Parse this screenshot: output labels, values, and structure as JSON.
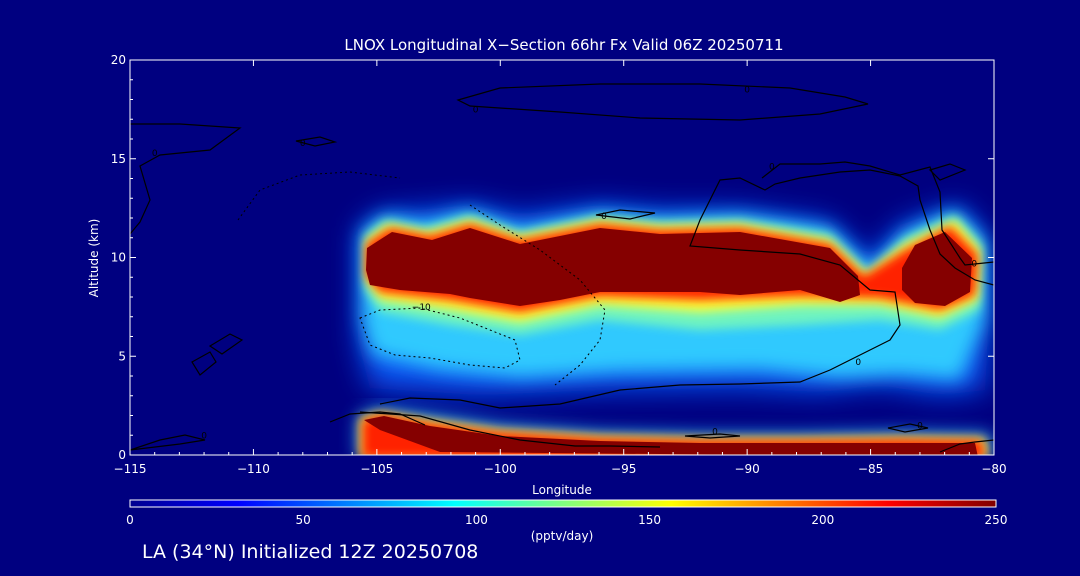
{
  "chart_data": {
    "type": "heatmap",
    "title": "LNOX Longitudinal X−Section 66hr  Fx Valid 06Z 20250711",
    "xlabel": "Longitude",
    "ylabel": "Altitude (km)",
    "xlim": [
      -115,
      -80
    ],
    "ylim": [
      0,
      20
    ],
    "xticks": [
      -115,
      -110,
      -105,
      -100,
      -95,
      -90,
      -85,
      -80
    ],
    "xtick_labels": [
      "−115",
      "−110",
      "−105",
      "−100",
      "−95",
      "−90",
      "−85",
      "−80"
    ],
    "yticks": [
      0,
      5,
      10,
      15,
      20
    ],
    "ytick_labels": [
      "0",
      "5",
      "10",
      "15",
      "20"
    ],
    "grid": false,
    "colorbar": {
      "range": [
        0,
        250
      ],
      "ticks": [
        0,
        50,
        100,
        150,
        200,
        250
      ],
      "tick_labels": [
        "0",
        "50",
        "100",
        "150",
        "200",
        "250"
      ],
      "label": "(pptv/day)",
      "colormap": "jet"
    },
    "regions": [
      {
        "name": "upper-band",
        "lon": [
          -105.8,
          -80.5
        ],
        "alt": [
          5.5,
          12.5
        ],
        "peak": 250
      },
      {
        "name": "surface-band",
        "lon": [
          -105.6,
          -80.2
        ],
        "alt": [
          0.1,
          2.2
        ],
        "peak": 250
      }
    ],
    "contour_labels": [
      {
        "text": "0",
        "lon": -114.0,
        "alt": 15.3
      },
      {
        "text": "0",
        "lon": -108.0,
        "alt": 15.8
      },
      {
        "text": "0",
        "lon": -112.0,
        "alt": 1.0
      },
      {
        "text": "0",
        "lon": -101.0,
        "alt": 17.5
      },
      {
        "text": "0",
        "lon": -90.0,
        "alt": 18.5
      },
      {
        "text": "0",
        "lon": -95.8,
        "alt": 12.1
      },
      {
        "text": "0",
        "lon": -89.0,
        "alt": 14.6
      },
      {
        "text": "0",
        "lon": -80.8,
        "alt": 9.7
      },
      {
        "text": "0",
        "lon": -85.5,
        "alt": 4.7
      },
      {
        "text": "0",
        "lon": -91.3,
        "alt": 1.2
      },
      {
        "text": "0",
        "lon": -83.0,
        "alt": 1.5
      },
      {
        "text": "−10",
        "lon": -103.2,
        "alt": 7.5
      }
    ]
  },
  "footer": {
    "caption": "LA (34°N) Initialized 12Z 20250708"
  }
}
